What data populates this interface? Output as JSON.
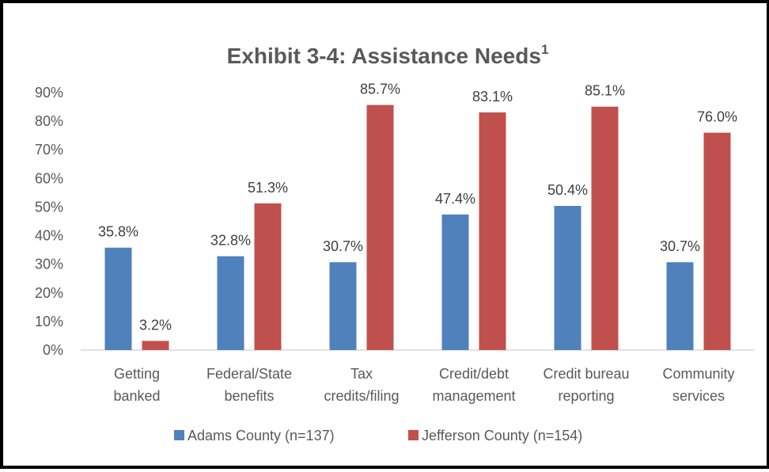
{
  "chart_data": {
    "type": "bar",
    "title": "Exhibit 3-4: Assistance Needs",
    "title_superscript": "1",
    "categories": [
      [
        "Getting",
        "banked"
      ],
      [
        "Federal/State",
        "benefits"
      ],
      [
        "Tax",
        "credits/filing"
      ],
      [
        "Credit/debt",
        "management"
      ],
      [
        "Credit bureau",
        "reporting"
      ],
      [
        "Community",
        "services"
      ]
    ],
    "series": [
      {
        "name": "Adams County (n=137)",
        "color": "#4F81BD",
        "values": [
          35.8,
          32.8,
          30.7,
          47.4,
          50.4,
          30.7
        ],
        "labels": [
          "35.8%",
          "32.8%",
          "30.7%",
          "47.4%",
          "50.4%",
          "30.7%"
        ]
      },
      {
        "name": "Jefferson County (n=154)",
        "color": "#C0504D",
        "values": [
          3.2,
          51.3,
          85.7,
          83.1,
          85.1,
          76.0
        ],
        "labels": [
          "3.2%",
          "51.3%",
          "85.7%",
          "83.1%",
          "85.1%",
          "76.0%"
        ]
      }
    ],
    "y_ticks": [
      "0%",
      "10%",
      "20%",
      "30%",
      "40%",
      "50%",
      "60%",
      "70%",
      "80%",
      "90%"
    ],
    "ylim": [
      0,
      90
    ],
    "xlabel": "",
    "ylabel": "",
    "grid": false,
    "legend_position": "bottom"
  }
}
